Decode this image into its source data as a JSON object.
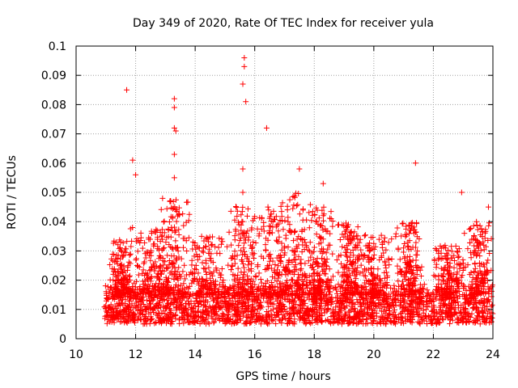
{
  "chart_data": {
    "type": "scatter",
    "title": "Day 349 of 2020, Rate Of TEC Index for receiver yula",
    "xlabel": "GPS time / hours",
    "ylabel": "ROTI / TECUs",
    "xlim": [
      10,
      24
    ],
    "ylim": [
      0,
      0.1
    ],
    "x_ticks": [
      "10",
      "12",
      "14",
      "16",
      "18",
      "20",
      "22",
      "24"
    ],
    "y_ticks": [
      "0",
      "0.01",
      "0.02",
      "0.03",
      "0.04",
      "0.05",
      "0.06",
      "0.07",
      "0.08",
      "0.09",
      "0.1"
    ],
    "grid": true,
    "marker": "+",
    "color": "#ff0000",
    "series": [
      {
        "x_range": [
          10.95,
          24.0
        ],
        "baseline_band": [
          0.005,
          0.02
        ],
        "notable_points": [
          {
            "x": 11.7,
            "y": 0.085
          },
          {
            "x": 11.9,
            "y": 0.061
          },
          {
            "x": 12.0,
            "y": 0.056
          },
          {
            "x": 13.3,
            "y": 0.082
          },
          {
            "x": 13.3,
            "y": 0.079
          },
          {
            "x": 13.3,
            "y": 0.072
          },
          {
            "x": 13.35,
            "y": 0.071
          },
          {
            "x": 13.3,
            "y": 0.063
          },
          {
            "x": 13.3,
            "y": 0.055
          },
          {
            "x": 15.65,
            "y": 0.096
          },
          {
            "x": 15.65,
            "y": 0.093
          },
          {
            "x": 15.6,
            "y": 0.087
          },
          {
            "x": 15.7,
            "y": 0.081
          },
          {
            "x": 15.6,
            "y": 0.058
          },
          {
            "x": 15.6,
            "y": 0.05
          },
          {
            "x": 16.4,
            "y": 0.072
          },
          {
            "x": 17.5,
            "y": 0.058
          },
          {
            "x": 18.3,
            "y": 0.053
          },
          {
            "x": 21.4,
            "y": 0.06
          },
          {
            "x": 22.95,
            "y": 0.05
          },
          {
            "x": 23.85,
            "y": 0.045
          }
        ]
      }
    ]
  }
}
